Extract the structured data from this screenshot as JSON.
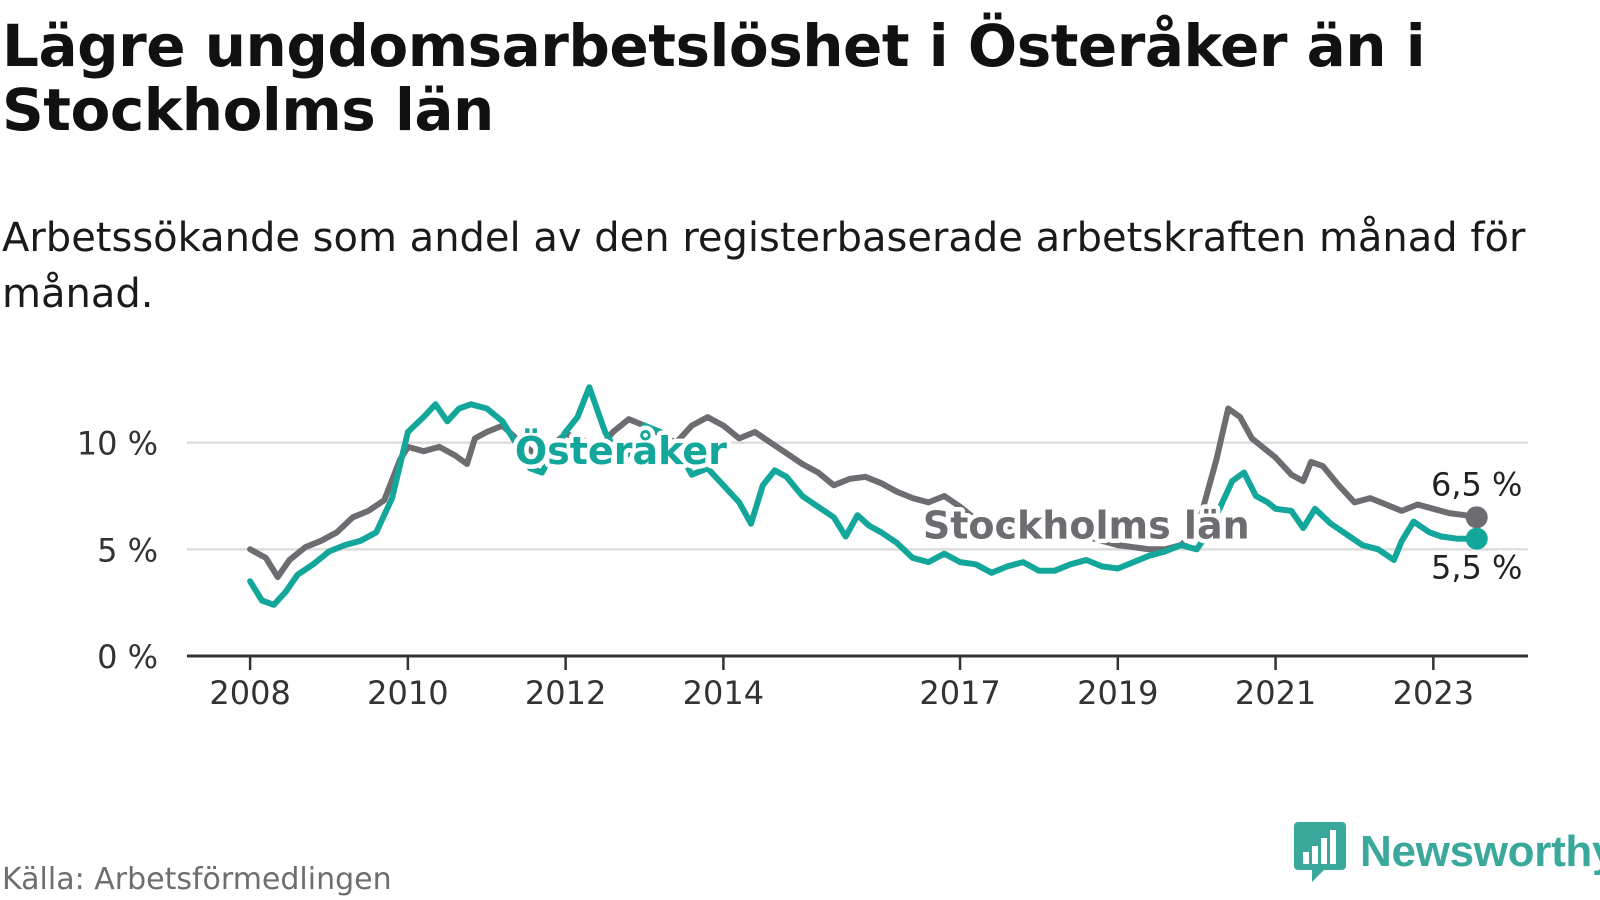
{
  "title": "Lägre ungdomsarbetslöshet i Österåker än i Stockholms län",
  "subtitle": "Arbetssökande som andel av den registerbaserade arbetskraften månad för månad.",
  "source": "Källa: Arbetsförmedlingen",
  "brand": "Newsworthy",
  "colors": {
    "osteraker": "#13a69a",
    "stockholm": "#6d6d71",
    "grid": "#dddddd",
    "axis": "#333333",
    "brand": "#3aa99b"
  },
  "chart_data": {
    "type": "line",
    "title": "Lägre ungdomsarbetslöshet i Österåker än i Stockholms län",
    "xlabel": "",
    "ylabel": "",
    "ylim": [
      0,
      12
    ],
    "xlim": [
      2007.2,
      2024.2
    ],
    "y_ticks": [
      0,
      5,
      10
    ],
    "y_tick_labels": [
      "0 %",
      "5 %",
      "10 %"
    ],
    "x_ticks": [
      2008,
      2010,
      2012,
      2014,
      2017,
      2019,
      2021,
      2023
    ],
    "x_tick_labels": [
      "2008",
      "2010",
      "2012",
      "2014",
      "2017",
      "2019",
      "2021",
      "2023"
    ],
    "grid": true,
    "series": [
      {
        "name": "Stockholms län",
        "label": "Stockholms län",
        "end_label": "6,5 %",
        "points": [
          [
            2008.0,
            5.0
          ],
          [
            2008.2,
            4.6
          ],
          [
            2008.35,
            3.7
          ],
          [
            2008.5,
            4.5
          ],
          [
            2008.7,
            5.1
          ],
          [
            2008.9,
            5.4
          ],
          [
            2009.1,
            5.8
          ],
          [
            2009.3,
            6.5
          ],
          [
            2009.5,
            6.8
          ],
          [
            2009.7,
            7.3
          ],
          [
            2009.9,
            9.2
          ],
          [
            2010.0,
            9.8
          ],
          [
            2010.2,
            9.6
          ],
          [
            2010.4,
            9.8
          ],
          [
            2010.6,
            9.4
          ],
          [
            2010.75,
            9.0
          ],
          [
            2010.85,
            10.2
          ],
          [
            2011.0,
            10.5
          ],
          [
            2011.2,
            10.8
          ],
          [
            2011.4,
            10.1
          ],
          [
            2011.6,
            9.5
          ],
          [
            2011.8,
            9.8
          ],
          [
            2012.0,
            10.4
          ],
          [
            2012.2,
            10.2
          ],
          [
            2012.4,
            9.6
          ],
          [
            2012.6,
            10.5
          ],
          [
            2012.8,
            11.1
          ],
          [
            2013.0,
            10.8
          ],
          [
            2013.2,
            10.4
          ],
          [
            2013.4,
            10.0
          ],
          [
            2013.6,
            10.8
          ],
          [
            2013.8,
            11.2
          ],
          [
            2014.0,
            10.8
          ],
          [
            2014.2,
            10.2
          ],
          [
            2014.4,
            10.5
          ],
          [
            2014.6,
            10.0
          ],
          [
            2014.8,
            9.5
          ],
          [
            2015.0,
            9.0
          ],
          [
            2015.2,
            8.6
          ],
          [
            2015.4,
            8.0
          ],
          [
            2015.6,
            8.3
          ],
          [
            2015.8,
            8.4
          ],
          [
            2016.0,
            8.1
          ],
          [
            2016.2,
            7.7
          ],
          [
            2016.4,
            7.4
          ],
          [
            2016.6,
            7.2
          ],
          [
            2016.8,
            7.5
          ],
          [
            2017.0,
            7.0
          ],
          [
            2017.2,
            6.4
          ],
          [
            2017.4,
            6.3
          ],
          [
            2017.6,
            6.1
          ],
          [
            2017.8,
            5.9
          ],
          [
            2018.0,
            5.8
          ],
          [
            2018.2,
            5.7
          ],
          [
            2018.4,
            5.6
          ],
          [
            2018.6,
            5.6
          ],
          [
            2018.8,
            5.4
          ],
          [
            2019.0,
            5.2
          ],
          [
            2019.2,
            5.1
          ],
          [
            2019.4,
            5.0
          ],
          [
            2019.6,
            5.0
          ],
          [
            2019.8,
            5.2
          ],
          [
            2020.0,
            5.8
          ],
          [
            2020.1,
            7.2
          ],
          [
            2020.25,
            9.2
          ],
          [
            2020.4,
            11.6
          ],
          [
            2020.55,
            11.2
          ],
          [
            2020.7,
            10.2
          ],
          [
            2020.9,
            9.6
          ],
          [
            2021.0,
            9.3
          ],
          [
            2021.2,
            8.5
          ],
          [
            2021.35,
            8.2
          ],
          [
            2021.45,
            9.1
          ],
          [
            2021.6,
            8.9
          ],
          [
            2021.8,
            8.0
          ],
          [
            2022.0,
            7.2
          ],
          [
            2022.2,
            7.4
          ],
          [
            2022.4,
            7.1
          ],
          [
            2022.6,
            6.8
          ],
          [
            2022.8,
            7.1
          ],
          [
            2023.0,
            6.9
          ],
          [
            2023.2,
            6.7
          ],
          [
            2023.4,
            6.6
          ],
          [
            2023.55,
            6.5
          ]
        ]
      },
      {
        "name": "Österåker",
        "label": "Österåker",
        "end_label": "5,5 %",
        "points": [
          [
            2008.0,
            3.5
          ],
          [
            2008.15,
            2.6
          ],
          [
            2008.3,
            2.4
          ],
          [
            2008.45,
            3.0
          ],
          [
            2008.6,
            3.8
          ],
          [
            2008.8,
            4.3
          ],
          [
            2009.0,
            4.9
          ],
          [
            2009.2,
            5.2
          ],
          [
            2009.4,
            5.4
          ],
          [
            2009.6,
            5.8
          ],
          [
            2009.8,
            7.4
          ],
          [
            2010.0,
            10.5
          ],
          [
            2010.2,
            11.2
          ],
          [
            2010.35,
            11.8
          ],
          [
            2010.5,
            11.0
          ],
          [
            2010.65,
            11.6
          ],
          [
            2010.8,
            11.8
          ],
          [
            2011.0,
            11.6
          ],
          [
            2011.2,
            11.0
          ],
          [
            2011.4,
            9.8
          ],
          [
            2011.55,
            8.8
          ],
          [
            2011.7,
            8.6
          ],
          [
            2011.85,
            9.6
          ],
          [
            2012.0,
            10.5
          ],
          [
            2012.15,
            11.2
          ],
          [
            2012.3,
            12.6
          ],
          [
            2012.5,
            10.5
          ],
          [
            2012.7,
            9.2
          ],
          [
            2012.9,
            9.8
          ],
          [
            2013.0,
            10.8
          ],
          [
            2013.2,
            10.5
          ],
          [
            2013.4,
            9.8
          ],
          [
            2013.6,
            8.5
          ],
          [
            2013.8,
            8.8
          ],
          [
            2014.0,
            8.0
          ],
          [
            2014.2,
            7.2
          ],
          [
            2014.35,
            6.2
          ],
          [
            2014.5,
            8.0
          ],
          [
            2014.65,
            8.7
          ],
          [
            2014.8,
            8.4
          ],
          [
            2015.0,
            7.5
          ],
          [
            2015.2,
            7.0
          ],
          [
            2015.4,
            6.5
          ],
          [
            2015.55,
            5.6
          ],
          [
            2015.7,
            6.6
          ],
          [
            2015.85,
            6.1
          ],
          [
            2016.0,
            5.8
          ],
          [
            2016.2,
            5.3
          ],
          [
            2016.4,
            4.6
          ],
          [
            2016.6,
            4.4
          ],
          [
            2016.8,
            4.8
          ],
          [
            2017.0,
            4.4
          ],
          [
            2017.2,
            4.3
          ],
          [
            2017.4,
            3.9
          ],
          [
            2017.6,
            4.2
          ],
          [
            2017.8,
            4.4
          ],
          [
            2018.0,
            4.0
          ],
          [
            2018.2,
            4.0
          ],
          [
            2018.4,
            4.3
          ],
          [
            2018.6,
            4.5
          ],
          [
            2018.8,
            4.2
          ],
          [
            2019.0,
            4.1
          ],
          [
            2019.2,
            4.4
          ],
          [
            2019.4,
            4.7
          ],
          [
            2019.6,
            4.9
          ],
          [
            2019.8,
            5.2
          ],
          [
            2020.0,
            5.0
          ],
          [
            2020.15,
            5.8
          ],
          [
            2020.3,
            7.0
          ],
          [
            2020.45,
            8.2
          ],
          [
            2020.6,
            8.6
          ],
          [
            2020.75,
            7.5
          ],
          [
            2020.9,
            7.2
          ],
          [
            2021.0,
            6.9
          ],
          [
            2021.2,
            6.8
          ],
          [
            2021.35,
            6.0
          ],
          [
            2021.5,
            6.9
          ],
          [
            2021.7,
            6.2
          ],
          [
            2021.9,
            5.7
          ],
          [
            2022.1,
            5.2
          ],
          [
            2022.3,
            5.0
          ],
          [
            2022.5,
            4.5
          ],
          [
            2022.6,
            5.4
          ],
          [
            2022.75,
            6.3
          ],
          [
            2022.95,
            5.8
          ],
          [
            2023.1,
            5.6
          ],
          [
            2023.3,
            5.5
          ],
          [
            2023.55,
            5.5
          ]
        ]
      }
    ]
  }
}
